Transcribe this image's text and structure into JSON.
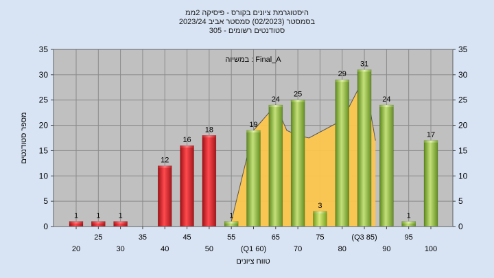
{
  "chart_data": {
    "type": "bar",
    "title_lines": [
      "היסטוגרמת ציונים בקורס - פיסיקה 2ממ",
      "בסמסטר  (02/2023)  סמסטר אביב 2023/24",
      "305 - סטודנטים רשומים"
    ],
    "annotation": "במשיוה : Final_A",
    "ylabel": "מספר סטודנטים",
    "xlabel": "טווח ציונים",
    "ylim": [
      0,
      35
    ],
    "yticks": [
      0,
      5,
      10,
      15,
      20,
      25,
      30,
      35
    ],
    "x_tick_labels": [
      "20",
      "25",
      "30",
      "35",
      "40",
      "45",
      "50",
      "55",
      "(Q1 60)",
      "65",
      "70",
      "75",
      "80",
      "(Q3 85)",
      "90",
      "95",
      "100"
    ],
    "x": [
      20,
      25,
      30,
      35,
      40,
      45,
      50,
      55,
      60,
      65,
      70,
      75,
      80,
      85,
      90,
      95,
      100
    ],
    "values": [
      1,
      1,
      1,
      0,
      12,
      16,
      18,
      1,
      19,
      24,
      25,
      3,
      29,
      31,
      24,
      1,
      17
    ],
    "value_labels": [
      "1",
      "1",
      "1",
      "",
      "12",
      "16",
      "18",
      "1",
      "19",
      "24",
      "25",
      "3",
      "29",
      "31",
      "24",
      "1",
      "17"
    ],
    "bar_colors": [
      "red",
      "red",
      "red",
      "red",
      "red",
      "red",
      "red",
      "green",
      "green",
      "green",
      "green",
      "yellow-green",
      "green",
      "green",
      "green",
      "green",
      "green"
    ],
    "area_series": {
      "x": [
        55,
        60,
        65,
        67.5,
        70,
        72.5,
        80,
        85,
        87.5
      ],
      "values": [
        1,
        19,
        24,
        19,
        18,
        17.5,
        21,
        29.5,
        17
      ]
    },
    "grid": true,
    "colors": {
      "background": "#d8e4f4",
      "plot_area": "#c0c0c0",
      "red_bar": "#e0262c",
      "green_bar": "#8fbc3c",
      "yellow_bar": "#a8c83c",
      "area_fill": "#ffc74a"
    }
  }
}
